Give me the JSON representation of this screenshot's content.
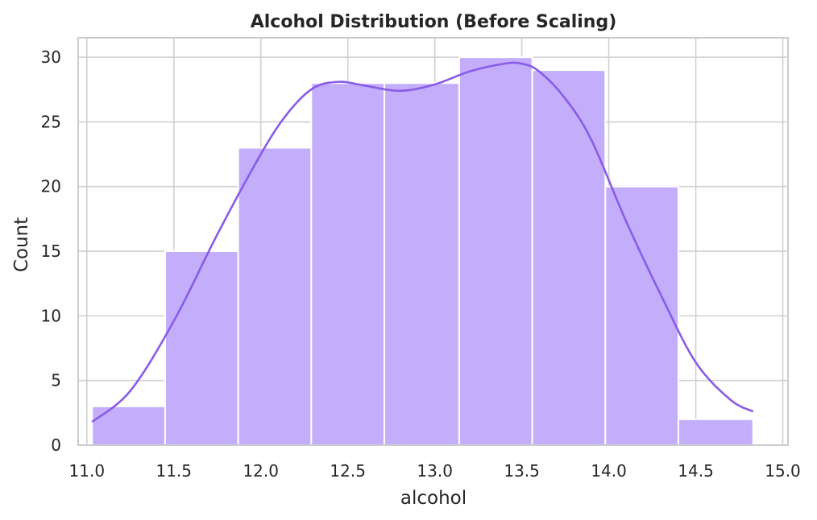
{
  "chart_data": {
    "type": "bar",
    "title": "Alcohol Distribution (Before Scaling)",
    "xlabel": "alcohol",
    "ylabel": "Count",
    "xlim": [
      10.95,
      15.03
    ],
    "ylim": [
      0,
      31.5
    ],
    "xticks": [
      "11.0",
      "11.5",
      "12.0",
      "12.5",
      "13.0",
      "13.5",
      "14.0",
      "14.5",
      "15.0"
    ],
    "yticks": [
      "0",
      "5",
      "10",
      "15",
      "20",
      "25",
      "30"
    ],
    "grid": true,
    "bins": [
      {
        "x0": 11.03,
        "x1": 11.45,
        "count": 3
      },
      {
        "x0": 11.45,
        "x1": 11.87,
        "count": 15
      },
      {
        "x0": 11.87,
        "x1": 12.29,
        "count": 23
      },
      {
        "x0": 12.29,
        "x1": 12.71,
        "count": 28
      },
      {
        "x0": 12.71,
        "x1": 13.14,
        "count": 28
      },
      {
        "x0": 13.14,
        "x1": 13.56,
        "count": 30
      },
      {
        "x0": 13.56,
        "x1": 13.98,
        "count": 29
      },
      {
        "x0": 13.98,
        "x1": 14.4,
        "count": 20
      },
      {
        "x0": 14.4,
        "x1": 14.83,
        "count": 2
      }
    ],
    "kde": {
      "x": [
        11.03,
        11.25,
        11.5,
        11.75,
        12.0,
        12.15,
        12.3,
        12.45,
        12.6,
        12.8,
        13.0,
        13.2,
        13.4,
        13.5,
        13.6,
        13.75,
        13.9,
        14.1,
        14.3,
        14.5,
        14.7,
        14.83
      ],
      "y": [
        1.8,
        4.2,
        9.6,
        16.3,
        22.5,
        25.6,
        27.6,
        28.1,
        27.8,
        27.4,
        27.9,
        28.9,
        29.5,
        29.5,
        28.9,
        26.8,
        23.6,
        17.3,
        11.6,
        6.4,
        3.5,
        2.6
      ]
    },
    "colors": {
      "bar_fill": "#c4aefb",
      "bar_edge": "#ffffff",
      "kde_line": "#8a5be8",
      "grid": "#d0d0d0",
      "spine": "#cccccc"
    }
  }
}
